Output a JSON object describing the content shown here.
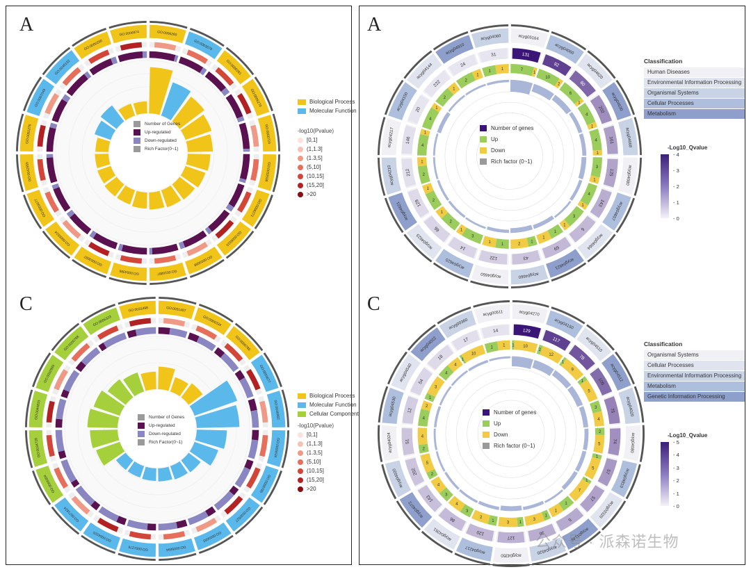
{
  "panels": {
    "top_left": {
      "label": "A"
    },
    "bottom_left": {
      "label": "C"
    },
    "top_right": {
      "label": "A"
    },
    "bottom_right": {
      "label": "C"
    }
  },
  "left_legends": {
    "center_items": [
      "Number of Genes",
      "Up-regulated",
      "Down-regulated",
      "Rich Factor(0~1)"
    ],
    "pvalue_title": "-log10(Pvalue)",
    "pvalue_bins": [
      "[0,1]",
      "(1,1.3]",
      "(1.3,5]",
      "(5,10]",
      "(10,15]",
      "(15,20]",
      ">20"
    ],
    "pvalue_colors": [
      "#fbe3dc",
      "#f6c2b4",
      "#ef9a86",
      "#e56f5b",
      "#d2463a",
      "#b32222",
      "#8a0d12"
    ]
  },
  "right_legends": {
    "center_items": [
      "Number of genes",
      "Up",
      "Down",
      "Rich factor (0~1)"
    ],
    "classification_title": "Classification",
    "qvalue_title": "-Log10_Qvalue"
  },
  "colors": {
    "bp": "#f0c419",
    "mf": "#5bb8ea",
    "cc": "#a5cf3b",
    "up": "#5a1150",
    "down": "#8a86c2",
    "rich": "#9a9a9a",
    "kegg_up": "#9acd5c",
    "kegg_down": "#f2cb45",
    "kegg_genes": "#3b1478"
  },
  "chart_data": [
    {
      "type": "circos",
      "panel": "A (top-left)",
      "title": "",
      "legend": [
        "Biological Process",
        "Molecular Function"
      ],
      "categories": [
        "GO:0006260",
        "GO:0003678",
        "GO:0006281",
        "GO:0006270",
        "GO:0000724",
        "GO:0032508",
        "GO:0006271",
        "GO:0006310",
        "GO:0003688",
        "GO:0016887",
        "GO:0004386",
        "GO:0003697",
        "GO:0005524",
        "GO:0003677",
        "GO:0042555",
        "GO:0051276",
        "GO:0007049",
        "GO:0045132",
        "GO:0000280",
        "GO:0006974"
      ],
      "classes": [
        "Biological Process",
        "Molecular Function",
        "Biological Process",
        "Biological Process",
        "Biological Process",
        "Biological Process",
        "Biological Process",
        "Biological Process",
        "Biological Process",
        "Biological Process",
        "Biological Process",
        "Biological Process",
        "Biological Process",
        "Biological Process",
        "Biological Process",
        "Biological Process",
        "Molecular Function",
        "Molecular Function",
        "Biological Process",
        "Biological Process"
      ],
      "series": [
        {
          "name": "Rich Factor(0~1)",
          "values": [
            0.92,
            0.7,
            0.62,
            0.55,
            0.5,
            0.45,
            0.42,
            0.38,
            0.36,
            0.34,
            0.32,
            0.3,
            0.3,
            0.28,
            0.27,
            0.26,
            0.34,
            0.4,
            0.25,
            0.24
          ]
        },
        {
          "name": "Up-regulated",
          "values": [
            0.9,
            0.85,
            0.8,
            0.85,
            0.9,
            0.88,
            0.82,
            0.86,
            0.84,
            0.9,
            0.87,
            0.85,
            0.83,
            0.86,
            0.88,
            0.84,
            0.8,
            0.86,
            0.82,
            0.85
          ]
        },
        {
          "name": "Down-regulated",
          "values": [
            0.1,
            0.15,
            0.2,
            0.15,
            0.1,
            0.12,
            0.18,
            0.14,
            0.16,
            0.1,
            0.13,
            0.15,
            0.17,
            0.14,
            0.12,
            0.16,
            0.2,
            0.14,
            0.18,
            0.15
          ]
        }
      ]
    },
    {
      "type": "circos",
      "panel": "C (bottom-left)",
      "title": "",
      "legend": [
        "Biological Process",
        "Molecular Function",
        "Cellular Component"
      ],
      "categories": [
        "GO:0031497",
        "GO:0006334",
        "GO:0000786",
        "GO:0003677",
        "GO:0046982",
        "GO:0005634",
        "GO:0000785",
        "GO:0030527",
        "GO:0003682",
        "GO:0005694",
        "GO:0051276",
        "GO:0006325",
        "GO:0071824",
        "GO:0065004",
        "GO:0034728",
        "GO:0044815",
        "GO:0032993",
        "GO:0000788",
        "GO:0006333",
        "GO:0031498"
      ],
      "classes": [
        "Biological Process",
        "Biological Process",
        "Biological Process",
        "Molecular Function",
        "Molecular Function",
        "Molecular Function",
        "Molecular Function",
        "Molecular Function",
        "Molecular Function",
        "Molecular Function",
        "Molecular Function",
        "Molecular Function",
        "Molecular Function",
        "Cellular Component",
        "Cellular Component",
        "Cellular Component",
        "Cellular Component",
        "Cellular Component",
        "Cellular Component",
        "Biological Process"
      ],
      "series": [
        {
          "name": "Rich Factor(0~1)",
          "values": [
            0.45,
            0.3,
            0.35,
            0.9,
            0.85,
            0.6,
            0.5,
            0.3,
            0.28,
            0.26,
            0.25,
            0.24,
            0.24,
            0.5,
            0.55,
            0.6,
            0.55,
            0.45,
            0.4,
            0.35
          ]
        },
        {
          "name": "Up-regulated",
          "values": [
            0.4,
            0.35,
            0.3,
            0.3,
            0.4,
            0.35,
            0.3,
            0.25,
            0.3,
            0.35,
            0.3,
            0.3,
            0.25,
            0.2,
            0.25,
            0.3,
            0.25,
            0.3,
            0.2,
            0.3
          ]
        },
        {
          "name": "Down-regulated",
          "values": [
            0.6,
            0.65,
            0.7,
            0.7,
            0.6,
            0.65,
            0.7,
            0.75,
            0.7,
            0.65,
            0.7,
            0.7,
            0.75,
            0.8,
            0.75,
            0.7,
            0.75,
            0.7,
            0.8,
            0.7
          ]
        }
      ]
    },
    {
      "type": "circos",
      "panel": "A (top-right)",
      "title": "",
      "classification": [
        "Human Diseases",
        "Environmental Information Processing",
        "Organismal Systems",
        "Cellular Processes",
        "Metabolism"
      ],
      "class_colors": [
        "#f1f1f5",
        "#dfe4ef",
        "#c9d3e6",
        "#aebfdd",
        "#8e9fcc"
      ],
      "qvalue_ticks": [
        "4",
        "3",
        "2",
        "1",
        "0"
      ],
      "categories": [
        "acyg05164",
        "acyg04060",
        "acyg04620",
        "acyg04630",
        "acyg04668",
        "acyg04080",
        "acyg04657",
        "acyg04064",
        "acyg04621",
        "acyg04660",
        "acyg04650",
        "acyg04625",
        "acyg04623",
        "acyg04621",
        "acyg04210",
        "acyg04217",
        "acyg04150",
        "acyg04144",
        "acyg04910",
        "acyg04060"
      ],
      "number_of_genes": [
        131,
        92,
        60,
        202,
        161,
        125,
        143,
        6,
        69,
        43,
        122,
        14,
        66,
        129,
        212,
        146,
        20,
        222,
        24,
        31
      ],
      "up": [
        7,
        10,
        6,
        4,
        4,
        3,
        4,
        3,
        1,
        1,
        1,
        3,
        2,
        2,
        2,
        4,
        4,
        2,
        2,
        1
      ],
      "down": [
        1,
        2,
        1,
        1,
        1,
        1,
        1,
        1,
        1,
        2,
        1,
        1,
        1,
        1,
        1,
        1,
        1,
        1,
        1,
        1
      ],
      "rich_factor": [
        0.3,
        0.2,
        0.15,
        0.1,
        0.1,
        0.12,
        0.08,
        0.05,
        0.1,
        0.12,
        0.08,
        0.05,
        0.06,
        0.06,
        0.05,
        0.05,
        0.1,
        0.05,
        0.05,
        0.06
      ],
      "qvalue": [
        4,
        3.2,
        2.5,
        1.8,
        1.5,
        1.4,
        1.2,
        1,
        1,
        0.8,
        0.6,
        0.5,
        0.5,
        0.4,
        0.3,
        0.3,
        0.2,
        0.2,
        0.2,
        0.2
      ]
    },
    {
      "type": "circos",
      "panel": "C (bottom-right)",
      "title": "",
      "classification": [
        "Organismal Systems",
        "Cellular Processes",
        "Environmental Information Processing",
        "Metabolism",
        "Genetic Information Processing"
      ],
      "class_colors": [
        "#f1f1f5",
        "#dfe4ef",
        "#c9d3e6",
        "#aebfdd",
        "#8e9fcc"
      ],
      "qvalue_ticks": [
        "5",
        "4",
        "3",
        "2",
        "1",
        "0"
      ],
      "categories": [
        "acyg04270",
        "acyg04150",
        "acyg04510",
        "acyg04512",
        "acyg04020",
        "acyg04080",
        "acyg04810",
        "acyg03320",
        "acyg04146",
        "acyg04520",
        "acyg04350",
        "acyg04217",
        "acyg04261",
        "acyg04072",
        "acyg04020",
        "acyg04024",
        "acyg04530",
        "acyg04540",
        "acyg04022",
        "acyg00360",
        "acyg00511"
      ],
      "number_of_genes": [
        129,
        117,
        78,
        106,
        75,
        74,
        57,
        57,
        5,
        36,
        127,
        120,
        86,
        143,
        202,
        51,
        12,
        54,
        18,
        17,
        14
      ],
      "up": [
        1,
        2,
        1,
        1,
        3,
        2,
        1,
        1,
        1,
        1,
        1,
        1,
        3,
        3,
        2,
        2,
        4,
        1,
        4,
        1,
        1
      ],
      "down": [
        10,
        12,
        9,
        5,
        4,
        5,
        5,
        7,
        1,
        3,
        3,
        2,
        4,
        4,
        5,
        4,
        2,
        3,
        4,
        10,
        1
      ],
      "rich_factor": [
        0.25,
        0.2,
        0.15,
        0.15,
        0.12,
        0.1,
        0.1,
        0.1,
        0.05,
        0.08,
        0.12,
        0.08,
        0.06,
        0.06,
        0.05,
        0.05,
        0.06,
        0.05,
        0.05,
        0.06,
        0.05
      ],
      "qvalue": [
        5,
        4,
        3.5,
        3,
        2.5,
        2.2,
        2,
        1.8,
        1.6,
        1.5,
        1.4,
        1.3,
        1.2,
        1.1,
        1,
        1,
        0.8,
        0.6,
        0.5,
        0.4,
        0.3
      ]
    }
  ],
  "watermark": "公众号 · 派森诺生物"
}
